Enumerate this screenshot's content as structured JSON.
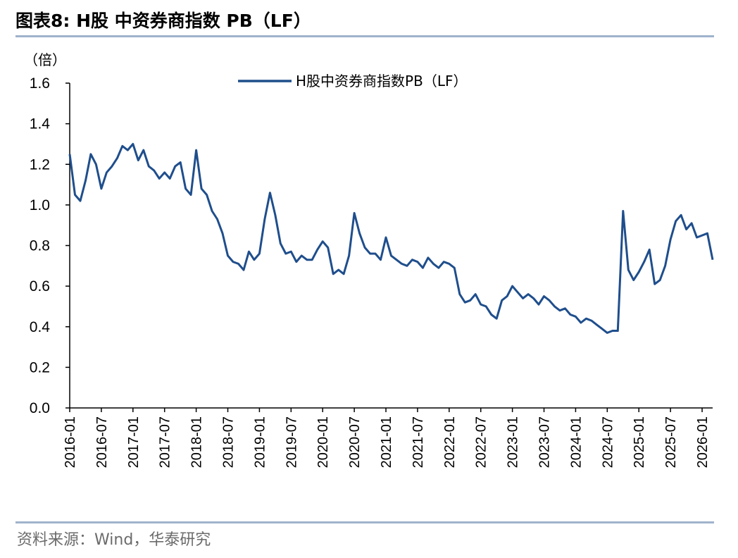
{
  "title": "图表8:   H股 中资券商指数 PB（LF）",
  "source": "资料来源：Wind，华泰研究",
  "chart_data": {
    "type": "line",
    "unit_label": "（倍）",
    "ylim": [
      0.0,
      1.6
    ],
    "y_ticks": [
      "0.0",
      "0.2",
      "0.4",
      "0.6",
      "0.8",
      "1.0",
      "1.2",
      "1.4",
      "1.6"
    ],
    "x_ticks": [
      "2016-01",
      "2016-07",
      "2017-01",
      "2017-07",
      "2018-01",
      "2018-07",
      "2019-01",
      "2019-07",
      "2020-01",
      "2020-07",
      "2021-01",
      "2021-07",
      "2022-01",
      "2022-07",
      "2023-01",
      "2023-07",
      "2024-01",
      "2024-07",
      "2025-01",
      "2025-07",
      "2026-01"
    ],
    "x_range": [
      "2016-01",
      "2026-03"
    ],
    "legend_position": "top-center",
    "grid": false,
    "colors": {
      "series": "#1f4e8c",
      "axis": "#000000"
    },
    "series": [
      {
        "name": "H股中资券商指数PB（LF）",
        "points": [
          [
            "2016-01",
            1.25
          ],
          [
            "2016-02",
            1.05
          ],
          [
            "2016-03",
            1.02
          ],
          [
            "2016-04",
            1.12
          ],
          [
            "2016-05",
            1.25
          ],
          [
            "2016-06",
            1.2
          ],
          [
            "2016-07",
            1.08
          ],
          [
            "2016-08",
            1.16
          ],
          [
            "2016-09",
            1.19
          ],
          [
            "2016-10",
            1.23
          ],
          [
            "2016-11",
            1.29
          ],
          [
            "2016-12",
            1.27
          ],
          [
            "2017-01",
            1.3
          ],
          [
            "2017-02",
            1.22
          ],
          [
            "2017-03",
            1.27
          ],
          [
            "2017-04",
            1.19
          ],
          [
            "2017-05",
            1.17
          ],
          [
            "2017-06",
            1.13
          ],
          [
            "2017-07",
            1.16
          ],
          [
            "2017-08",
            1.13
          ],
          [
            "2017-09",
            1.19
          ],
          [
            "2017-10",
            1.21
          ],
          [
            "2017-11",
            1.08
          ],
          [
            "2017-12",
            1.05
          ],
          [
            "2018-01",
            1.27
          ],
          [
            "2018-02",
            1.08
          ],
          [
            "2018-03",
            1.05
          ],
          [
            "2018-04",
            0.97
          ],
          [
            "2018-05",
            0.93
          ],
          [
            "2018-06",
            0.86
          ],
          [
            "2018-07",
            0.75
          ],
          [
            "2018-08",
            0.72
          ],
          [
            "2018-09",
            0.71
          ],
          [
            "2018-10",
            0.68
          ],
          [
            "2018-11",
            0.77
          ],
          [
            "2018-12",
            0.73
          ],
          [
            "2019-01",
            0.76
          ],
          [
            "2019-02",
            0.93
          ],
          [
            "2019-03",
            1.06
          ],
          [
            "2019-04",
            0.95
          ],
          [
            "2019-05",
            0.81
          ],
          [
            "2019-06",
            0.76
          ],
          [
            "2019-07",
            0.77
          ],
          [
            "2019-08",
            0.72
          ],
          [
            "2019-09",
            0.75
          ],
          [
            "2019-10",
            0.73
          ],
          [
            "2019-11",
            0.73
          ],
          [
            "2019-12",
            0.78
          ],
          [
            "2020-01",
            0.82
          ],
          [
            "2020-02",
            0.79
          ],
          [
            "2020-03",
            0.66
          ],
          [
            "2020-04",
            0.68
          ],
          [
            "2020-05",
            0.66
          ],
          [
            "2020-06",
            0.75
          ],
          [
            "2020-07",
            0.96
          ],
          [
            "2020-08",
            0.86
          ],
          [
            "2020-09",
            0.79
          ],
          [
            "2020-10",
            0.76
          ],
          [
            "2020-11",
            0.76
          ],
          [
            "2020-12",
            0.73
          ],
          [
            "2021-01",
            0.84
          ],
          [
            "2021-02",
            0.75
          ],
          [
            "2021-03",
            0.73
          ],
          [
            "2021-04",
            0.71
          ],
          [
            "2021-05",
            0.7
          ],
          [
            "2021-06",
            0.73
          ],
          [
            "2021-07",
            0.72
          ],
          [
            "2021-08",
            0.69
          ],
          [
            "2021-09",
            0.74
          ],
          [
            "2021-10",
            0.71
          ],
          [
            "2021-11",
            0.69
          ],
          [
            "2021-12",
            0.72
          ],
          [
            "2022-01",
            0.71
          ],
          [
            "2022-02",
            0.69
          ],
          [
            "2022-03",
            0.56
          ],
          [
            "2022-04",
            0.52
          ],
          [
            "2022-05",
            0.53
          ],
          [
            "2022-06",
            0.56
          ],
          [
            "2022-07",
            0.51
          ],
          [
            "2022-08",
            0.5
          ],
          [
            "2022-09",
            0.46
          ],
          [
            "2022-10",
            0.44
          ],
          [
            "2022-11",
            0.53
          ],
          [
            "2022-12",
            0.55
          ],
          [
            "2023-01",
            0.6
          ],
          [
            "2023-02",
            0.57
          ],
          [
            "2023-03",
            0.54
          ],
          [
            "2023-04",
            0.56
          ],
          [
            "2023-05",
            0.54
          ],
          [
            "2023-06",
            0.51
          ],
          [
            "2023-07",
            0.55
          ],
          [
            "2023-08",
            0.53
          ],
          [
            "2023-09",
            0.5
          ],
          [
            "2023-10",
            0.48
          ],
          [
            "2023-11",
            0.49
          ],
          [
            "2023-12",
            0.46
          ],
          [
            "2024-01",
            0.45
          ],
          [
            "2024-02",
            0.42
          ],
          [
            "2024-03",
            0.44
          ],
          [
            "2024-04",
            0.43
          ],
          [
            "2024-05",
            0.41
          ],
          [
            "2024-06",
            0.39
          ],
          [
            "2024-07",
            0.37
          ],
          [
            "2024-08",
            0.38
          ],
          [
            "2024-09",
            0.38
          ],
          [
            "2024-10",
            0.97
          ],
          [
            "2024-11",
            0.68
          ],
          [
            "2024-12",
            0.63
          ],
          [
            "2025-01",
            0.67
          ],
          [
            "2025-02",
            0.72
          ],
          [
            "2025-03",
            0.78
          ],
          [
            "2025-04",
            0.61
          ],
          [
            "2025-05",
            0.63
          ],
          [
            "2025-06",
            0.7
          ],
          [
            "2025-07",
            0.83
          ],
          [
            "2025-08",
            0.92
          ],
          [
            "2025-09",
            0.95
          ],
          [
            "2025-10",
            0.88
          ],
          [
            "2025-11",
            0.91
          ],
          [
            "2025-12",
            0.84
          ],
          [
            "2026-01",
            0.85
          ],
          [
            "2026-02",
            0.86
          ],
          [
            "2026-03",
            0.73
          ]
        ]
      }
    ]
  }
}
